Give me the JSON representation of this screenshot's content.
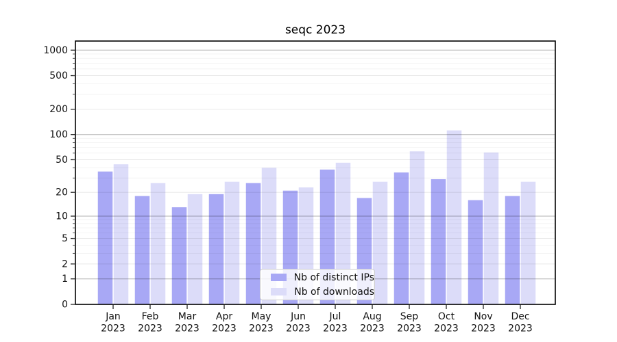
{
  "window": {
    "background": "#ffffff"
  },
  "chart_data": {
    "type": "bar",
    "title": "seqc 2023",
    "categories": [
      "Jan 2023",
      "Feb 2023",
      "Mar 2023",
      "Apr 2023",
      "May 2023",
      "Jun 2023",
      "Jul 2023",
      "Aug 2023",
      "Sep 2023",
      "Oct 2023",
      "Nov 2023",
      "Dec 2023"
    ],
    "series": [
      {
        "name": "Nb of distinct IPs",
        "color": "#a8a8f5",
        "values": [
          36,
          18,
          13,
          19,
          26,
          21,
          38,
          17,
          35,
          29,
          16,
          18
        ]
      },
      {
        "name": "Nb of downloads",
        "color": "#dcdcf9",
        "values": [
          44,
          26,
          19,
          27,
          40,
          23,
          46,
          27,
          63,
          112,
          61,
          27
        ]
      }
    ],
    "xlabel": "",
    "ylabel": "",
    "yscale": "log1p",
    "yticks": [
      0,
      1,
      2,
      5,
      10,
      20,
      50,
      100,
      200,
      500,
      1000
    ],
    "ytick_labels": [
      "0",
      "1",
      "2",
      "5",
      "10",
      "20",
      "50",
      "100",
      "200",
      "500",
      "1000"
    ],
    "ylim": [
      0,
      1400
    ],
    "grid": "both",
    "grid_over_bars": true,
    "legend_position": "lower center",
    "colors": {
      "frame": "#000000",
      "tick_text": "#111111",
      "grid_major": "rgba(0,0,0,0.30)",
      "grid_sub": "rgba(0,0,0,0.10)",
      "grid_minor": "rgba(0,0,0,0.05)"
    }
  }
}
